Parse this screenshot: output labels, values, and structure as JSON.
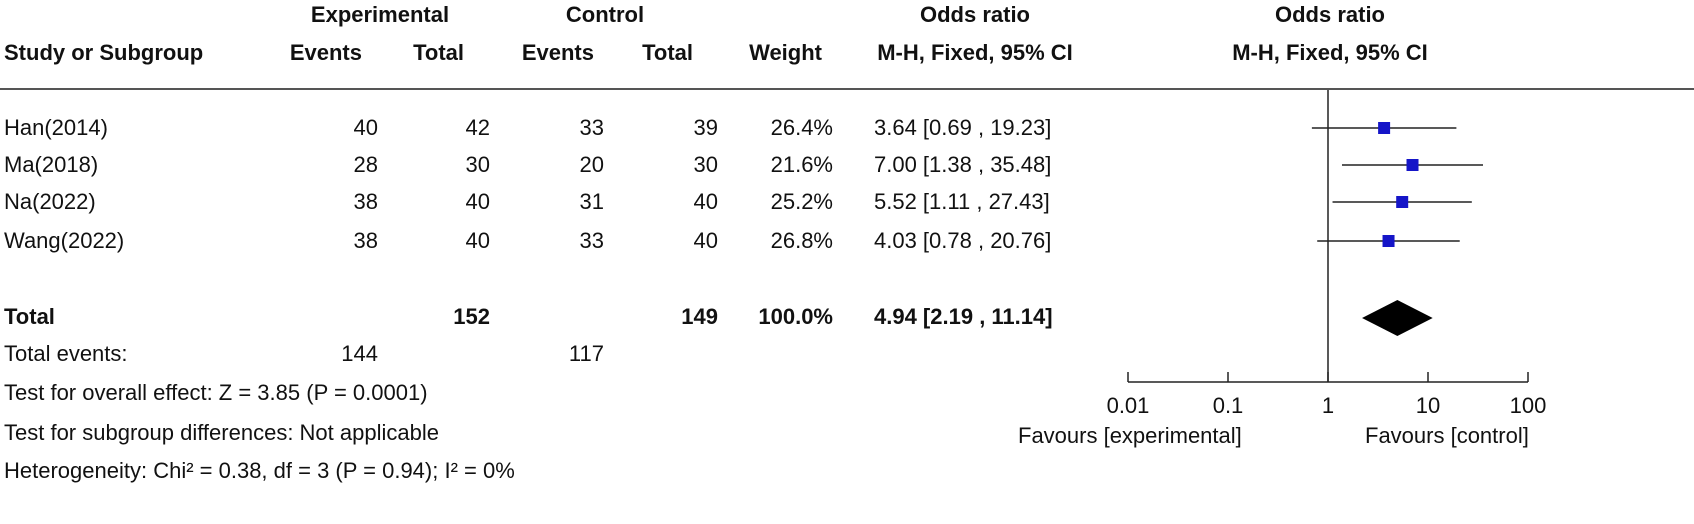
{
  "header": {
    "group_experimental": "Experimental",
    "group_control": "Control",
    "group_odds_ratio": "Odds ratio",
    "group_odds_ratio_plot": "Odds ratio",
    "col_study": "Study or Subgroup",
    "col_exp_events": "Events",
    "col_exp_total": "Total",
    "col_ctl_events": "Events",
    "col_ctl_total": "Total",
    "col_weight": "Weight",
    "col_or": "M-H, Fixed, 95% CI",
    "col_or_plot": "M-H, Fixed, 95% CI"
  },
  "studies": [
    {
      "name": "Han(2014)",
      "exp_events": "40",
      "exp_total": "42",
      "ctl_events": "33",
      "ctl_total": "39",
      "weight": "26.4%",
      "ci_text": "3.64 [0.69 , 19.23]"
    },
    {
      "name": "Ma(2018)",
      "exp_events": "28",
      "exp_total": "30",
      "ctl_events": "20",
      "ctl_total": "30",
      "weight": "21.6%",
      "ci_text": "7.00 [1.38 , 35.48]"
    },
    {
      "name": "Na(2022)",
      "exp_events": "38",
      "exp_total": "40",
      "ctl_events": "31",
      "ctl_total": "40",
      "weight": "25.2%",
      "ci_text": "5.52 [1.11 , 27.43]"
    },
    {
      "name": "Wang(2022)",
      "exp_events": "38",
      "exp_total": "40",
      "ctl_events": "33",
      "ctl_total": "40",
      "weight": "26.8%",
      "ci_text": "4.03 [0.78 , 20.76]"
    }
  ],
  "total": {
    "label": "Total",
    "exp_total": "152",
    "ctl_total": "149",
    "weight": "100.0%",
    "ci_text": "4.94 [2.19 , 11.14]"
  },
  "total_events": {
    "label": "Total events:",
    "exp": "144",
    "ctl": "117"
  },
  "footnotes": {
    "overall_effect": "Test for overall effect: Z = 3.85 (P = 0.0001)",
    "subgroup": "Test for subgroup differences: Not applicable",
    "heterogeneity": "Heterogeneity: Chi² = 0.38, df = 3 (P = 0.94); I² = 0%"
  },
  "axis": {
    "favours_left": "Favours [experimental]",
    "favours_right": "Favours [control]"
  },
  "colors": {
    "marker": "#1515c8",
    "diamond": "#000000",
    "line": "#222222"
  },
  "chart_data": {
    "type": "scatter",
    "scale": "log",
    "xlim": [
      0.01,
      100
    ],
    "ticks": [
      0.01,
      0.1,
      1,
      10,
      100
    ],
    "tick_labels": [
      "0.01",
      "0.1",
      "1",
      "10",
      "100"
    ],
    "reference_line": 1,
    "points": [
      {
        "study": "Han(2014)",
        "or": 3.64,
        "ci_low": 0.69,
        "ci_high": 19.23,
        "weight": 26.4
      },
      {
        "study": "Ma(2018)",
        "or": 7.0,
        "ci_low": 1.38,
        "ci_high": 35.48,
        "weight": 21.6
      },
      {
        "study": "Na(2022)",
        "or": 5.52,
        "ci_low": 1.11,
        "ci_high": 27.43,
        "weight": 25.2
      },
      {
        "study": "Wang(2022)",
        "or": 4.03,
        "ci_low": 0.78,
        "ci_high": 20.76,
        "weight": 26.8
      }
    ],
    "pooled": {
      "or": 4.94,
      "ci_low": 2.19,
      "ci_high": 11.14
    }
  }
}
